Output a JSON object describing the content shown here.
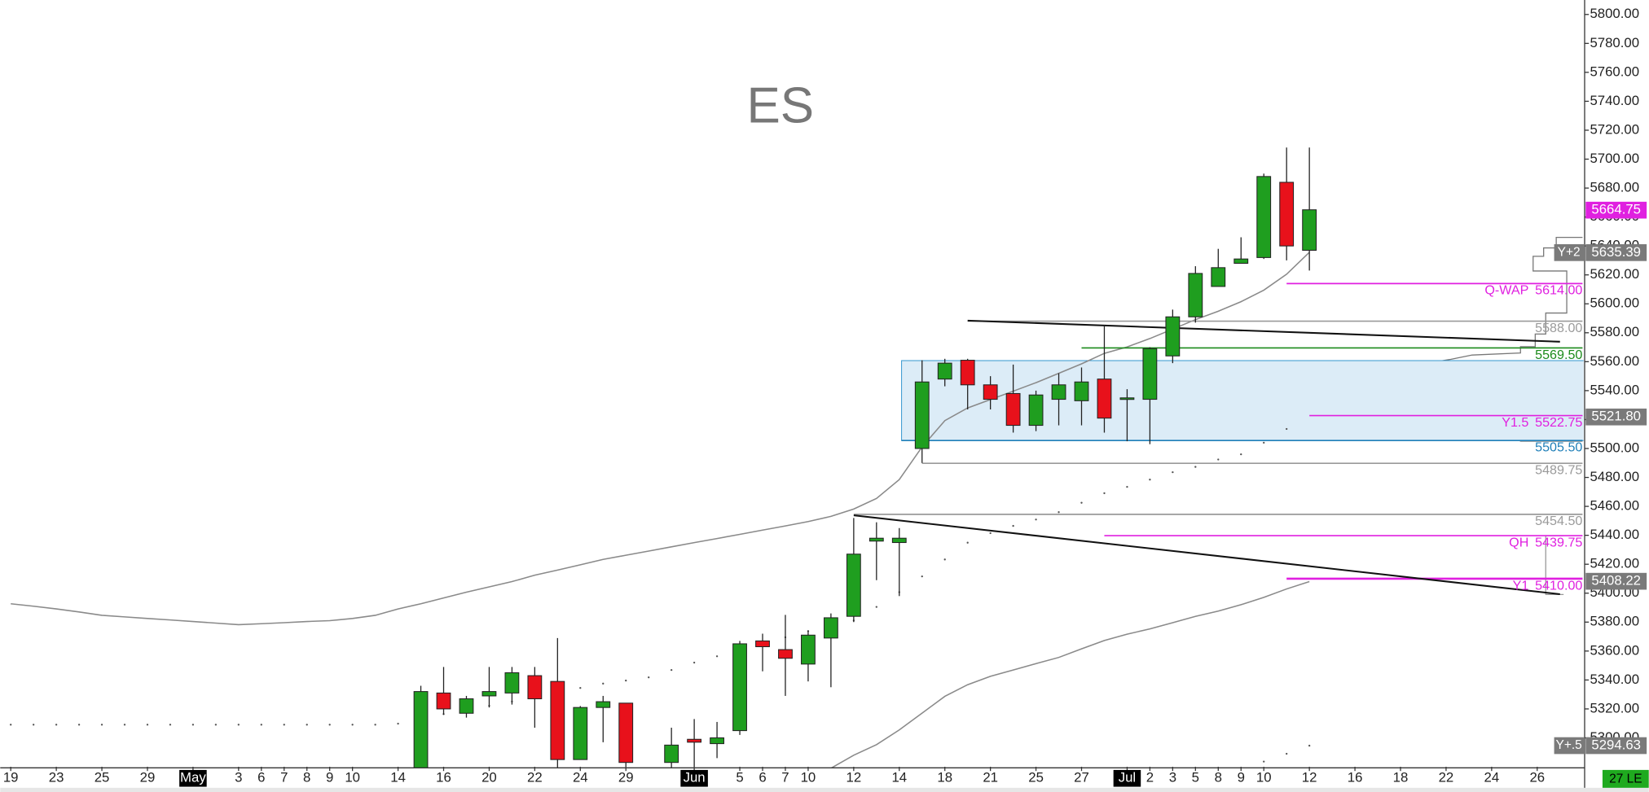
{
  "chart_data": {
    "type": "candlestick",
    "title": "ES",
    "categories": [
      "19",
      null,
      "23",
      null,
      "25",
      null,
      "29",
      null,
      "May",
      null,
      "3",
      "6",
      "7",
      "8",
      "9",
      "10",
      null,
      "14",
      null,
      "16",
      null,
      "20",
      null,
      "22",
      null,
      "24",
      null,
      "29",
      null,
      null,
      "Jun",
      null,
      "5",
      "6",
      "7",
      "10",
      null,
      "12",
      null,
      "14",
      null,
      "18",
      null,
      "21",
      null,
      "25",
      null,
      "27",
      null,
      "Jul",
      "2",
      "3",
      "5",
      "8",
      "9",
      "10",
      null,
      "12",
      null,
      "16",
      null,
      "18",
      null,
      "22",
      null,
      "24",
      null,
      "26",
      null,
      null
    ],
    "open": [
      null,
      null,
      null,
      null,
      null,
      null,
      null,
      null,
      null,
      null,
      null,
      null,
      null,
      null,
      null,
      null,
      null,
      null,
      5276,
      5331,
      5317,
      5329,
      5331,
      5343,
      5339,
      5285,
      5321,
      5324,
      null,
      5283,
      5299,
      5296,
      5305,
      5367,
      5361,
      5351,
      5369,
      5384,
      5436,
      5435,
      5500,
      5548,
      5561,
      5544,
      5538,
      5516,
      5534,
      5533,
      5548,
      5534,
      5534,
      5564,
      5591,
      5612,
      5628,
      5632,
      5684,
      5637,
      null,
      null,
      null,
      null,
      null,
      null,
      null,
      null,
      null,
      null,
      null,
      null
    ],
    "high": [
      null,
      null,
      null,
      null,
      null,
      null,
      null,
      null,
      null,
      null,
      null,
      null,
      null,
      null,
      null,
      null,
      null,
      null,
      5336,
      5349,
      5329,
      5349,
      5349,
      5349,
      5369,
      5322,
      5329,
      5324,
      null,
      5307,
      5313,
      5311,
      5367,
      5372,
      5385,
      5374,
      5386,
      5452,
      5449,
      5445,
      5561,
      5562,
      5562,
      5550,
      5558,
      5540,
      5552,
      5556,
      5585,
      5541,
      5570,
      5596,
      5626,
      5638,
      5646,
      5690,
      5708,
      5708,
      null,
      null,
      null,
      null,
      null,
      null,
      null,
      null,
      null,
      null,
      null,
      null
    ],
    "low": [
      null,
      null,
      null,
      null,
      null,
      null,
      null,
      null,
      null,
      null,
      null,
      null,
      null,
      null,
      null,
      null,
      null,
      null,
      5270,
      5316,
      5314,
      5321,
      5323,
      5307,
      5279,
      5285,
      5297,
      5280,
      null,
      5276,
      5280,
      5286,
      5302,
      5346,
      5329,
      5339,
      5335,
      5380,
      5409,
      5398,
      5490,
      5543,
      5527,
      5527,
      5511,
      5512,
      5516,
      5516,
      5511,
      5505,
      5503,
      5559,
      5587,
      5612,
      5628,
      5631,
      5630,
      5623,
      null,
      null,
      null,
      null,
      null,
      null,
      null,
      null,
      null,
      null,
      null,
      null
    ],
    "close": [
      null,
      null,
      null,
      null,
      null,
      null,
      null,
      null,
      null,
      null,
      null,
      null,
      null,
      null,
      null,
      null,
      null,
      null,
      5332,
      5320,
      5327,
      5332,
      5345,
      5327,
      5285,
      5321,
      5325,
      5283,
      null,
      5295,
      5297,
      5300,
      5365,
      5363,
      5355,
      5371,
      5383,
      5427,
      5438,
      5438,
      5546,
      5559,
      5544,
      5534,
      5516,
      5537,
      5544,
      5546,
      5521,
      5535,
      5569,
      5591,
      5621,
      5625,
      5631,
      5688,
      5640,
      5665,
      null,
      null,
      null,
      null,
      null,
      null,
      null,
      null,
      null,
      null,
      null,
      null
    ],
    "up_color": "#1f9e1f",
    "down_color": "#e8111b",
    "overlays": [
      {
        "style": "solid",
        "color": "#8a8a8a",
        "values": [
          5392.7,
          5391,
          5389.1,
          5387,
          5384.7,
          5383.6,
          5382.5,
          5381.5,
          5380.4,
          5379.3,
          5378.2,
          5378.9,
          5379.6,
          5380.4,
          5381,
          5382.5,
          5384.7,
          5389.1,
          5392.7,
          5396.7,
          5400.7,
          5404.4,
          5408,
          5412.4,
          5416,
          5419.6,
          5423.3,
          5426.2,
          5429.1,
          5432,
          5434.9,
          5437.8,
          5440.7,
          5443.6,
          5446.5,
          5449.5,
          5453.1,
          5458.2,
          5465.5,
          5478.5,
          5501.1,
          5519.3,
          5528,
          5533.8,
          5539.6,
          5545.5,
          5552,
          5558.5,
          5565.8,
          5570.2,
          5576,
          5582.5,
          5589.1,
          5594.9,
          5601.5,
          5609.5,
          5620.4,
          5635.6,
          null,
          null,
          null,
          null,
          null,
          null,
          null,
          null,
          null,
          null,
          null,
          null
        ]
      },
      {
        "style": "solid",
        "color": "#8a8a8a",
        "values": [
          null,
          null,
          null,
          null,
          null,
          null,
          null,
          null,
          null,
          null,
          null,
          null,
          null,
          null,
          null,
          null,
          null,
          null,
          null,
          null,
          null,
          null,
          null,
          null,
          null,
          null,
          null,
          null,
          null,
          null,
          null,
          null,
          null,
          null,
          null,
          null,
          5279,
          5288,
          5295.3,
          5305.5,
          5317.1,
          5328.7,
          5336.7,
          5342.5,
          5346.9,
          5351.3,
          5355.6,
          5361.5,
          5367.3,
          5371.6,
          5375.3,
          5379.6,
          5384,
          5387.6,
          5392,
          5397.1,
          5402.9,
          5408,
          null,
          null,
          null,
          null,
          null,
          null,
          null,
          null,
          null,
          null,
          null,
          null
        ]
      },
      {
        "style": "dots",
        "color": "#555555",
        "values": [
          5309.1,
          5309.1,
          5309.1,
          5309.1,
          5309.1,
          5309.1,
          5309.1,
          5309.1,
          5309.1,
          5309.1,
          5309.1,
          5309.1,
          5309.1,
          5309.1,
          5309.1,
          5309.1,
          5309.1,
          5309.8,
          5312.7,
          5316.4,
          5319.3,
          5322.2,
          5325.1,
          5328.7,
          5331.6,
          5334.5,
          5337.5,
          5339.6,
          5341.8,
          5346.9,
          5352,
          5356.4,
          5360.7,
          5365.1,
          5369.5,
          5373.8,
          5376.7,
          5381.1,
          5390.5,
          5400.7,
          5411.6,
          5423.3,
          5434.9,
          5441.5,
          5446.5,
          5450.9,
          5456,
          5462.5,
          5469.1,
          5473.5,
          5478.5,
          5483.6,
          5487.3,
          5492.4,
          5496,
          5504,
          5513.5,
          null,
          null,
          null,
          null,
          null,
          null,
          null,
          null,
          null,
          null,
          null,
          null,
          null
        ]
      },
      {
        "style": "dots",
        "color": "#555555",
        "values": [
          null,
          null,
          null,
          null,
          null,
          null,
          null,
          null,
          null,
          null,
          null,
          null,
          null,
          null,
          null,
          null,
          null,
          null,
          null,
          null,
          null,
          null,
          null,
          null,
          null,
          null,
          null,
          null,
          null,
          null,
          null,
          null,
          null,
          null,
          null,
          null,
          null,
          null,
          null,
          null,
          null,
          null,
          null,
          null,
          null,
          null,
          null,
          null,
          null,
          null,
          null,
          null,
          null,
          null,
          null,
          5283.6,
          5289,
          5294.6,
          null,
          null,
          null,
          null,
          null,
          null,
          null,
          null,
          null,
          null,
          null,
          null
        ]
      }
    ],
    "zone": {
      "range": [
        5505.5,
        5560.75
      ],
      "color": "#dcecf7",
      "edge_color": "#3a9ad0"
    },
    "levels": [
      {
        "name": "Q-WAP",
        "value": 5614,
        "label": "5614.00",
        "color": "#e020e0"
      },
      {
        "value": 5588,
        "label": "5588.00",
        "color": "#9a9a9a"
      },
      {
        "value": 5569.5,
        "label": "5569.50",
        "color": "#1a8a1a"
      },
      {
        "name": "Y1.5",
        "value": 5522.75,
        "label": "5522.75",
        "color": "#e020e0"
      },
      {
        "value": 5505.5,
        "label": "5505.50",
        "color": "#1f7fb8"
      },
      {
        "value": 5489.75,
        "label": "5489.75",
        "color": "#9a9a9a"
      },
      {
        "value": 5454.5,
        "label": "5454.50",
        "color": "#9a9a9a"
      },
      {
        "name": "QH",
        "value": 5439.75,
        "label": "5439.75",
        "color": "#e020e0"
      },
      {
        "name": "Y1",
        "value": 5410,
        "label": "5410.00",
        "color": "#e020e0"
      }
    ],
    "trendlines": [
      {
        "values": [
          5588.4,
          5573.8
        ],
        "color": "#111111"
      },
      {
        "values": [
          5453.8,
          5399.3
        ],
        "color": "#111111"
      }
    ],
    "badges": [
      {
        "value": 5664.75,
        "label": "5664.75",
        "color": "#e020e0"
      },
      {
        "name": "Y+2",
        "value": 5635.39,
        "label": "5635.39",
        "color": "#7a7a7a"
      },
      {
        "value": 5521.8,
        "label": "5521.80",
        "color": "#7a7a7a"
      },
      {
        "value": 5408.22,
        "label": "5408.22",
        "color": "#7a7a7a"
      },
      {
        "name": "Y+.5",
        "value": 5294.63,
        "label": "5294.63",
        "color": "#7a7a7a"
      }
    ],
    "status": "27 LE",
    "ylim": [
      5280,
      5810
    ],
    "yticks": [
      {
        "value": 5300,
        "label": "5300.00"
      },
      {
        "value": 5320,
        "label": "5320.00"
      },
      {
        "value": 5340,
        "label": "5340.00"
      },
      {
        "value": 5360,
        "label": "5360.00"
      },
      {
        "value": 5380,
        "label": "5380.00"
      },
      {
        "value": 5400,
        "label": "5400.00"
      },
      {
        "value": 5420,
        "label": "5420.00"
      },
      {
        "value": 5440,
        "label": "5440.00"
      },
      {
        "value": 5460,
        "label": "5460.00"
      },
      {
        "value": 5480,
        "label": "5480.00"
      },
      {
        "value": 5500,
        "label": "5500.00"
      },
      {
        "value": 5520,
        "label": "5520.00"
      },
      {
        "value": 5540,
        "label": "5540.00"
      },
      {
        "value": 5560,
        "label": "5560.00"
      },
      {
        "value": 5580,
        "label": "5580.00"
      },
      {
        "value": 5600,
        "label": "5600.00"
      },
      {
        "value": 5620,
        "label": "5620.00"
      },
      {
        "value": 5640,
        "label": "5640.00"
      },
      {
        "value": 5660,
        "label": "5660.00"
      },
      {
        "value": 5680,
        "label": "5680.00"
      },
      {
        "value": 5700,
        "label": "5700.00"
      },
      {
        "value": 5720,
        "label": "5720.00"
      },
      {
        "value": 5740,
        "label": "5740.00"
      },
      {
        "value": 5760,
        "label": "5760.00"
      },
      {
        "value": 5780,
        "label": "5780.00"
      },
      {
        "value": 5800,
        "label": "5800.00"
      }
    ]
  }
}
